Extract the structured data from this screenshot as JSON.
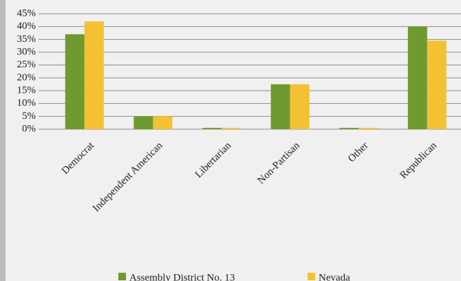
{
  "chart_data": {
    "type": "bar",
    "categories": [
      "Democrat",
      "Independent American",
      "Libertarian",
      "Non-Partisan",
      "Other",
      "Republican"
    ],
    "series": [
      {
        "name": "Assembly District No. 13",
        "color": "#6f9a2f",
        "values": [
          37,
          5,
          0.5,
          17.5,
          0.5,
          40
        ]
      },
      {
        "name": "Nevada",
        "color": "#f4c132",
        "values": [
          42,
          5,
          0.5,
          17.5,
          0.5,
          34.5
        ]
      }
    ],
    "ylim": [
      0,
      45
    ],
    "yticks": [
      {
        "value": 0,
        "label": "0%"
      },
      {
        "value": 5,
        "label": "5%"
      },
      {
        "value": 10,
        "label": "10%"
      },
      {
        "value": 15,
        "label": "15%"
      },
      {
        "value": 20,
        "label": "20%"
      },
      {
        "value": 25,
        "label": "25%"
      },
      {
        "value": 30,
        "label": "30%"
      },
      {
        "value": 35,
        "label": "35%"
      },
      {
        "value": 40,
        "label": "40%"
      },
      {
        "value": 45,
        "label": "45%"
      }
    ],
    "grid": true,
    "legend": "bottom"
  }
}
